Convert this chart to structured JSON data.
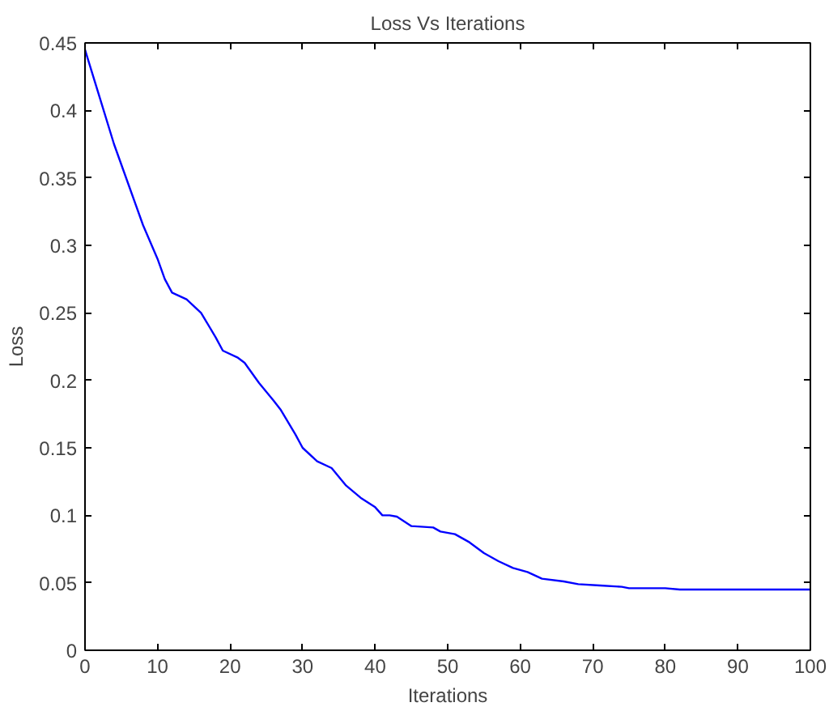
{
  "chart_data": {
    "type": "line",
    "title": "Loss Vs Iterations",
    "xlabel": "Iterations",
    "ylabel": "Loss",
    "x": [
      0,
      2,
      4,
      6,
      8,
      10,
      11,
      12,
      14,
      16,
      18,
      19,
      21,
      22,
      24,
      26,
      27,
      29,
      30,
      32,
      34,
      36,
      38,
      40,
      41,
      42,
      43,
      45,
      48,
      49,
      51,
      53,
      55,
      57,
      59,
      61,
      63,
      66,
      68,
      71,
      74,
      75,
      80,
      82,
      100
    ],
    "series": [
      {
        "color": "#0000ff",
        "values": [
          0.445,
          0.41,
          0.375,
          0.345,
          0.315,
          0.29,
          0.275,
          0.265,
          0.26,
          0.25,
          0.232,
          0.222,
          0.217,
          0.213,
          0.198,
          0.185,
          0.178,
          0.16,
          0.15,
          0.14,
          0.135,
          0.122,
          0.113,
          0.106,
          0.1,
          0.1,
          0.099,
          0.092,
          0.091,
          0.088,
          0.086,
          0.08,
          0.072,
          0.066,
          0.061,
          0.058,
          0.053,
          0.051,
          0.049,
          0.048,
          0.047,
          0.046,
          0.046,
          0.045,
          0.045
        ]
      }
    ],
    "xlim": [
      0,
      100
    ],
    "ylim": [
      0,
      0.45
    ],
    "xticks": [
      0,
      10,
      20,
      30,
      40,
      50,
      60,
      70,
      80,
      90,
      100
    ],
    "yticks": [
      0,
      0.05,
      0.1,
      0.15,
      0.2,
      0.25,
      0.3,
      0.35,
      0.4,
      0.45
    ],
    "grid": false
  }
}
